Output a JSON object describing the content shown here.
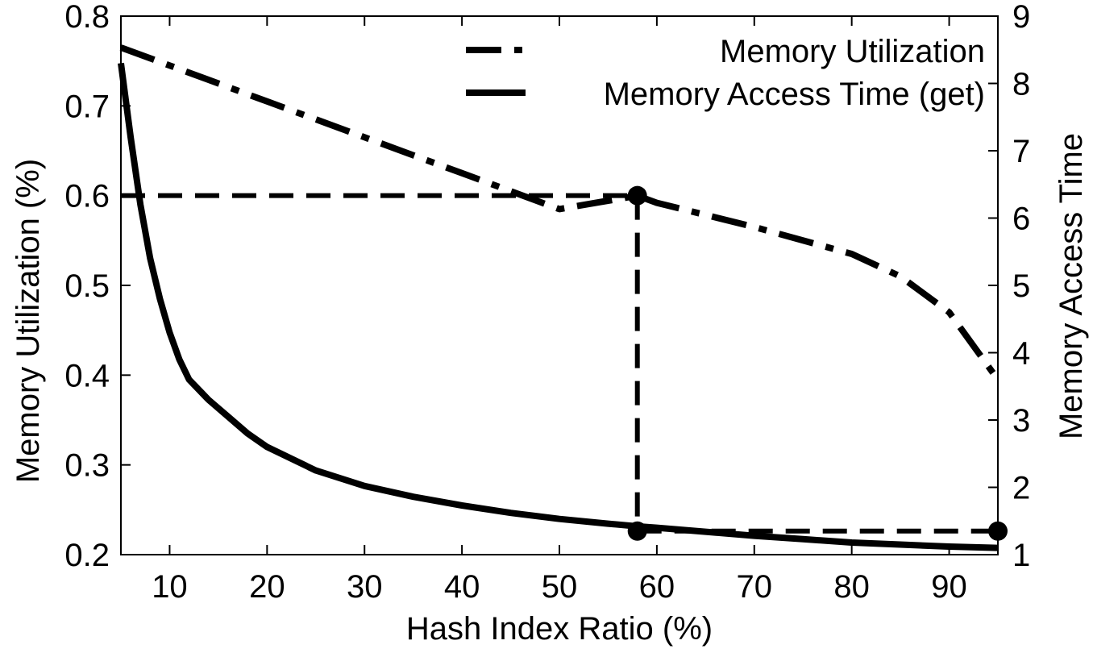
{
  "chart_data": {
    "type": "line",
    "title": "",
    "xlabel": "Hash Index Ratio (%)",
    "ylabel_left": "Memory Utilization (%)",
    "ylabel_right": "Memory Access Time",
    "xlim": [
      5,
      95
    ],
    "ylim_left": [
      0.2,
      0.8
    ],
    "ylim_right": [
      1,
      9
    ],
    "x_ticks": [
      10,
      20,
      30,
      40,
      50,
      60,
      70,
      80,
      90
    ],
    "y_left_ticks": [
      "0.2",
      "0.3",
      "0.4",
      "0.5",
      "0.6",
      "0.7",
      "0.8"
    ],
    "y_right_ticks": [
      "1",
      "2",
      "3",
      "4",
      "5",
      "6",
      "7",
      "8",
      "9"
    ],
    "grid": false,
    "legend_position": "top-right",
    "series": [
      {
        "name": "Memory Utilization",
        "axis": "left",
        "style": "dash-dot",
        "x": [
          5,
          10,
          20,
          30,
          40,
          50,
          58,
          60,
          70,
          80,
          85,
          90,
          95
        ],
        "y": [
          0.765,
          0.745,
          0.705,
          0.665,
          0.625,
          0.585,
          0.6,
          0.592,
          0.565,
          0.535,
          0.51,
          0.47,
          0.395
        ]
      },
      {
        "name": "Memory Access Time (get)",
        "axis": "right",
        "style": "solid",
        "x": [
          5,
          6,
          7,
          8,
          9,
          10,
          11,
          12,
          14,
          16,
          18,
          20,
          25,
          30,
          35,
          40,
          45,
          50,
          55,
          58,
          60,
          65,
          70,
          75,
          80,
          85,
          90,
          95
        ],
        "y": [
          8.3,
          7.2,
          6.2,
          5.4,
          4.8,
          4.3,
          3.9,
          3.6,
          3.3,
          3.05,
          2.8,
          2.6,
          2.25,
          2.02,
          1.86,
          1.73,
          1.62,
          1.53,
          1.46,
          1.42,
          1.4,
          1.34,
          1.28,
          1.23,
          1.18,
          1.15,
          1.12,
          1.1
        ]
      }
    ],
    "annotations": {
      "guide_style": "dashed",
      "points": [
        {
          "x": 58,
          "y_left": 0.6
        },
        {
          "x": 58,
          "y_right": 1.35
        },
        {
          "x": 95,
          "y_right": 1.35
        }
      ],
      "guide_lines": [
        {
          "from": {
            "x": 5,
            "y_left": 0.6
          },
          "to": {
            "x": 58,
            "y_left": 0.6
          }
        },
        {
          "from": {
            "x": 58,
            "y_left": 0.6
          },
          "to": {
            "x": 58,
            "y_right": 1.35
          }
        },
        {
          "from": {
            "x": 58,
            "y_right": 1.35
          },
          "to": {
            "x": 95,
            "y_right": 1.35
          }
        }
      ]
    }
  }
}
